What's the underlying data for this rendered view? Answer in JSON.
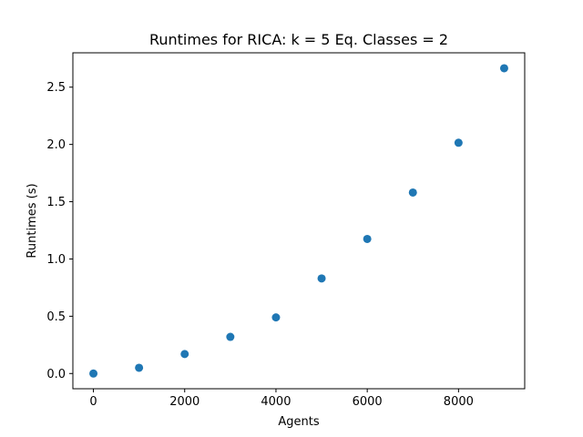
{
  "chart_data": {
    "type": "scatter",
    "title": "Runtimes for RICA: k = 5 Eq. Classes = 2",
    "xlabel": "Agents",
    "ylabel": "Runtimes (s)",
    "xlim": [
      -450,
      9450
    ],
    "ylim": [
      -0.133,
      2.8
    ],
    "xticks": [
      0,
      2000,
      4000,
      6000,
      8000
    ],
    "xtick_labels": [
      "0",
      "2000",
      "4000",
      "6000",
      "8000"
    ],
    "yticks": [
      0.0,
      0.5,
      1.0,
      1.5,
      2.0,
      2.5
    ],
    "ytick_labels": [
      "0.0",
      "0.5",
      "1.0",
      "1.5",
      "2.0",
      "2.5"
    ],
    "grid": false,
    "color": "#1f77b4",
    "points": [
      {
        "x": 0,
        "y": 0.0
      },
      {
        "x": 1000,
        "y": 0.05
      },
      {
        "x": 2000,
        "y": 0.17
      },
      {
        "x": 3000,
        "y": 0.32
      },
      {
        "x": 4000,
        "y": 0.49
      },
      {
        "x": 5000,
        "y": 0.83
      },
      {
        "x": 6000,
        "y": 1.175
      },
      {
        "x": 7000,
        "y": 1.58
      },
      {
        "x": 8000,
        "y": 2.015
      },
      {
        "x": 9000,
        "y": 2.665
      }
    ]
  }
}
